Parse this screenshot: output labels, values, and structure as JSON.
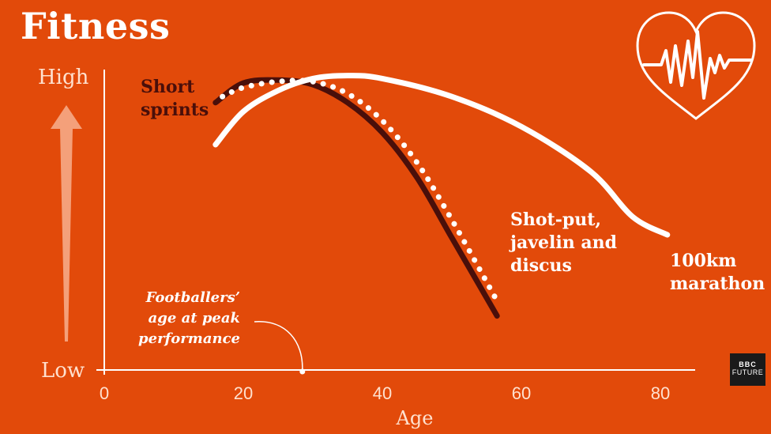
{
  "title": "Fitness",
  "colors": {
    "background": "#e24a0a",
    "short_sprints": "#4a0f0a",
    "white": "#ffffff",
    "axis_text": "#ffe1cf",
    "arrow": "#f4a07a"
  },
  "icon": {
    "name": "heart-pulse-icon"
  },
  "logo": {
    "line1": "BBC",
    "line2": "FUTURE"
  },
  "chart_data": {
    "type": "line",
    "title": "Fitness",
    "xlabel": "Age",
    "ylabel": "",
    "xlim": [
      0,
      90
    ],
    "ylim": [
      0,
      10
    ],
    "x_ticks": [
      0,
      20,
      40,
      60,
      80
    ],
    "y_levels": {
      "high": "High",
      "low": "Low"
    },
    "series": [
      {
        "name": "Short sprints",
        "style": "solid-dark",
        "label_lines": [
          "Short",
          "sprints"
        ],
        "x": [
          16,
          20,
          25,
          30,
          35,
          40,
          45,
          50,
          56.5
        ],
        "y": [
          8.9,
          9.55,
          9.65,
          9.5,
          8.9,
          7.9,
          6.4,
          4.4,
          1.8
        ]
      },
      {
        "name": "Shot-put, javelin and discus",
        "style": "dotted-white",
        "label_lines": [
          "Shot-put,",
          "javelin and",
          "discus"
        ],
        "x": [
          17,
          20,
          25,
          30,
          35,
          40,
          45,
          50,
          56.5
        ],
        "y": [
          9.1,
          9.4,
          9.6,
          9.6,
          9.2,
          8.3,
          6.9,
          5.0,
          2.3
        ]
      },
      {
        "name": "100km marathon",
        "style": "solid-white",
        "label_lines": [
          "100km",
          "marathon"
        ],
        "x": [
          16,
          20,
          25,
          30,
          35,
          40,
          50,
          60,
          70,
          76,
          81
        ],
        "y": [
          7.5,
          8.6,
          9.3,
          9.7,
          9.8,
          9.7,
          9.1,
          8.1,
          6.6,
          5.1,
          4.5
        ]
      }
    ],
    "annotation": {
      "lines": [
        "Footballers’",
        "age at peak",
        "performance"
      ],
      "x": 28.5
    }
  }
}
